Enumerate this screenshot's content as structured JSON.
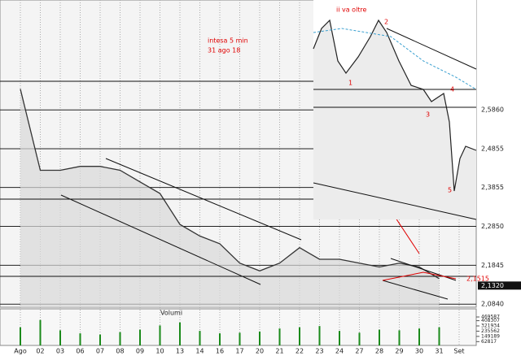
{
  "chart_data": [
    {
      "type": "line",
      "annotations": [
        "intesa 5 min",
        "31 ago 18",
        "ii va oltre",
        "1",
        "2",
        "3",
        "4",
        "5",
        "2,1515"
      ],
      "categories": [
        "Ago",
        "02",
        "03",
        "06",
        "07",
        "08",
        "09",
        "10",
        "13",
        "14",
        "16",
        "17",
        "20",
        "21",
        "22",
        "23",
        "24",
        "27",
        "28",
        "29",
        "30",
        "31",
        "Set"
      ],
      "series": [
        {
          "color": "#333333",
          "values": [
            2.64,
            2.43,
            2.43,
            2.44,
            2.44,
            2.43,
            2.4,
            2.37,
            2.29,
            2.26,
            2.24,
            2.19,
            2.17,
            2.19,
            2.23,
            2.2,
            2.2,
            2.19,
            2.18,
            2.19,
            2.18,
            2.15,
            null
          ]
        }
      ],
      "last_price": {
        "value": 2.132,
        "label": "2,1320"
      },
      "ylim": [
        2.076,
        2.87
      ],
      "yticks": [
        {
          "value": 2.586,
          "label": "2,5860"
        },
        {
          "value": 2.4855,
          "label": "2,4855"
        },
        {
          "value": 2.3855,
          "label": "2,3855"
        },
        {
          "value": 2.285,
          "label": "2,2850"
        },
        {
          "value": 2.1845,
          "label": "2,1845"
        },
        {
          "value": 2.084,
          "label": "2,0840"
        }
      ],
      "grid": true
    },
    {
      "type": "bar",
      "title": "Volumi",
      "color": "#1a8a1a",
      "values": [
        300000,
        420000,
        250000,
        200000,
        180000,
        220000,
        260000,
        330000,
        380000,
        240000,
        200000,
        210000,
        230000,
        280000,
        300000,
        320000,
        240000,
        210000,
        260000,
        250000,
        280000,
        300000,
        null
      ],
      "ylim": [
        0,
        469587
      ],
      "yticks": [
        62817,
        149189,
        235562,
        321934,
        408307,
        469587
      ]
    }
  ]
}
